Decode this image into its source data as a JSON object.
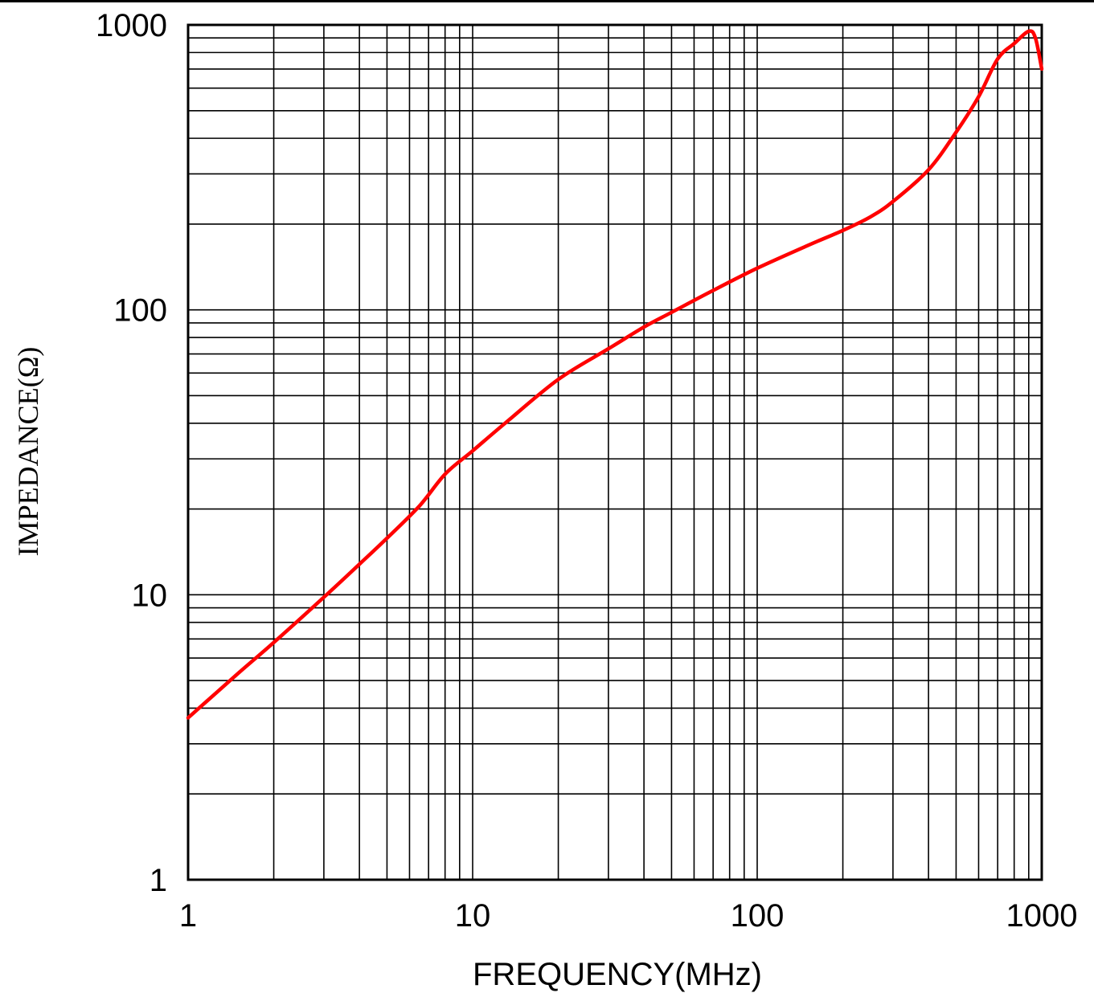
{
  "chart_data": {
    "type": "line",
    "title": "",
    "xlabel": "FREQUENCY(MHz)",
    "ylabel": "IMPEDANCE(Ω)",
    "x_scale": "log",
    "y_scale": "log",
    "xlim": [
      1,
      1000
    ],
    "ylim": [
      1,
      1000
    ],
    "x_ticks": [
      "1",
      "10",
      "100",
      "1000"
    ],
    "y_ticks": [
      "1",
      "10",
      "100",
      "1000"
    ],
    "grid": true,
    "line_color": "#ff0000",
    "series": [
      {
        "x": [
          1,
          1.5,
          2,
          3,
          4,
          5,
          6.5,
          8,
          10,
          13,
          20,
          30,
          40,
          50,
          70,
          100,
          150,
          200,
          250,
          300,
          400,
          500,
          600,
          700,
          800,
          900,
          950,
          1000
        ],
        "y": [
          3.7,
          5.3,
          6.8,
          9.8,
          12.8,
          15.8,
          20.5,
          26.5,
          32,
          40,
          57,
          73,
          87,
          98,
          117,
          140,
          168,
          190,
          212,
          240,
          310,
          420,
          560,
          760,
          860,
          950,
          900,
          700
        ]
      }
    ]
  }
}
